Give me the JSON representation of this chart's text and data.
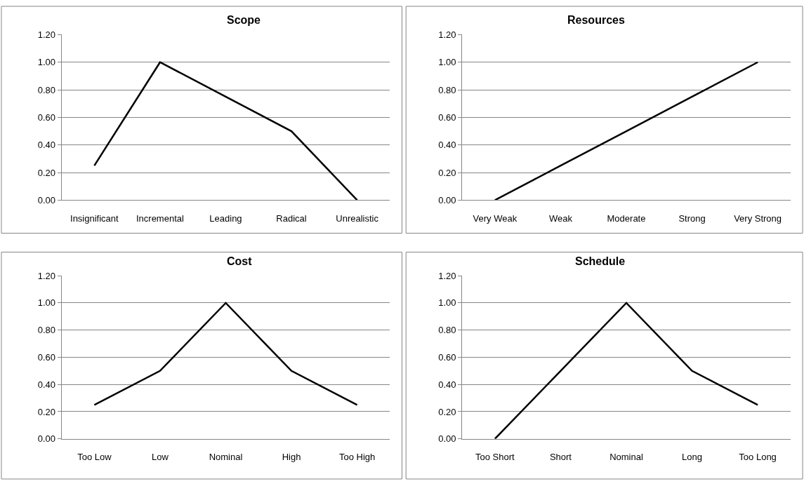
{
  "chart_data": [
    {
      "type": "line",
      "title": "Scope",
      "categories": [
        "Insignificant",
        "Incremental",
        "Leading",
        "Radical",
        "Unrealistic"
      ],
      "series": [
        {
          "color": "#000000",
          "values": [
            0.25,
            1.0,
            0.75,
            0.5,
            0.0
          ]
        }
      ],
      "ylim": [
        0,
        1.2
      ],
      "yticks": [
        {
          "value": 0,
          "label": "0.00"
        },
        {
          "value": 0.2,
          "label": "0.20"
        },
        {
          "value": 0.4,
          "label": "0.40"
        },
        {
          "value": 0.6,
          "label": "0.60"
        },
        {
          "value": 0.8,
          "label": "0.80"
        },
        {
          "value": 1.0,
          "label": "1.00"
        },
        {
          "value": 1.2,
          "label": "1.20"
        }
      ],
      "grid": "y",
      "marker": "none",
      "line_style": "solid"
    },
    {
      "type": "line",
      "title": "Resources",
      "categories": [
        "Very Weak",
        "Weak",
        "Moderate",
        "Strong",
        "Very Strong"
      ],
      "series": [
        {
          "color": "#000000",
          "values": [
            0.0,
            0.25,
            0.5,
            0.75,
            1.0
          ]
        }
      ],
      "ylim": [
        0,
        1.2
      ],
      "yticks": [
        {
          "value": 0,
          "label": "0.00"
        },
        {
          "value": 0.2,
          "label": "0.20"
        },
        {
          "value": 0.4,
          "label": "0.40"
        },
        {
          "value": 0.6,
          "label": "0.60"
        },
        {
          "value": 0.8,
          "label": "0.80"
        },
        {
          "value": 1.0,
          "label": "1.00"
        },
        {
          "value": 1.2,
          "label": "1.20"
        }
      ],
      "grid": "y",
      "marker": "none",
      "line_style": "solid"
    },
    {
      "type": "line",
      "title": "Cost",
      "categories": [
        "Too Low",
        "Low",
        "Nominal",
        "High",
        "Too High"
      ],
      "series": [
        {
          "color": "#000000",
          "values": [
            0.25,
            0.5,
            1.0,
            0.5,
            0.25
          ]
        }
      ],
      "ylim": [
        0,
        1.2
      ],
      "yticks": [
        {
          "value": 0,
          "label": "0.00"
        },
        {
          "value": 0.2,
          "label": "0.20"
        },
        {
          "value": 0.4,
          "label": "0.40"
        },
        {
          "value": 0.6,
          "label": "0.60"
        },
        {
          "value": 0.8,
          "label": "0.80"
        },
        {
          "value": 1.0,
          "label": "1.00"
        },
        {
          "value": 1.2,
          "label": "1.20"
        }
      ],
      "grid": "y",
      "marker": "none",
      "line_style": "solid"
    },
    {
      "type": "line",
      "title": "Schedule",
      "categories": [
        "Too Short",
        "Short",
        "Nominal",
        "Long",
        "Too Long"
      ],
      "series": [
        {
          "color": "#000000",
          "values": [
            0.0,
            0.5,
            1.0,
            0.5,
            0.25
          ]
        }
      ],
      "ylim": [
        0,
        1.2
      ],
      "yticks": [
        {
          "value": 0,
          "label": "0.00"
        },
        {
          "value": 0.2,
          "label": "0.20"
        },
        {
          "value": 0.4,
          "label": "0.40"
        },
        {
          "value": 0.6,
          "label": "0.60"
        },
        {
          "value": 0.8,
          "label": "0.80"
        },
        {
          "value": 1.0,
          "label": "1.00"
        },
        {
          "value": 1.2,
          "label": "1.20"
        }
      ],
      "grid": "y",
      "marker": "none",
      "line_style": "solid"
    }
  ]
}
